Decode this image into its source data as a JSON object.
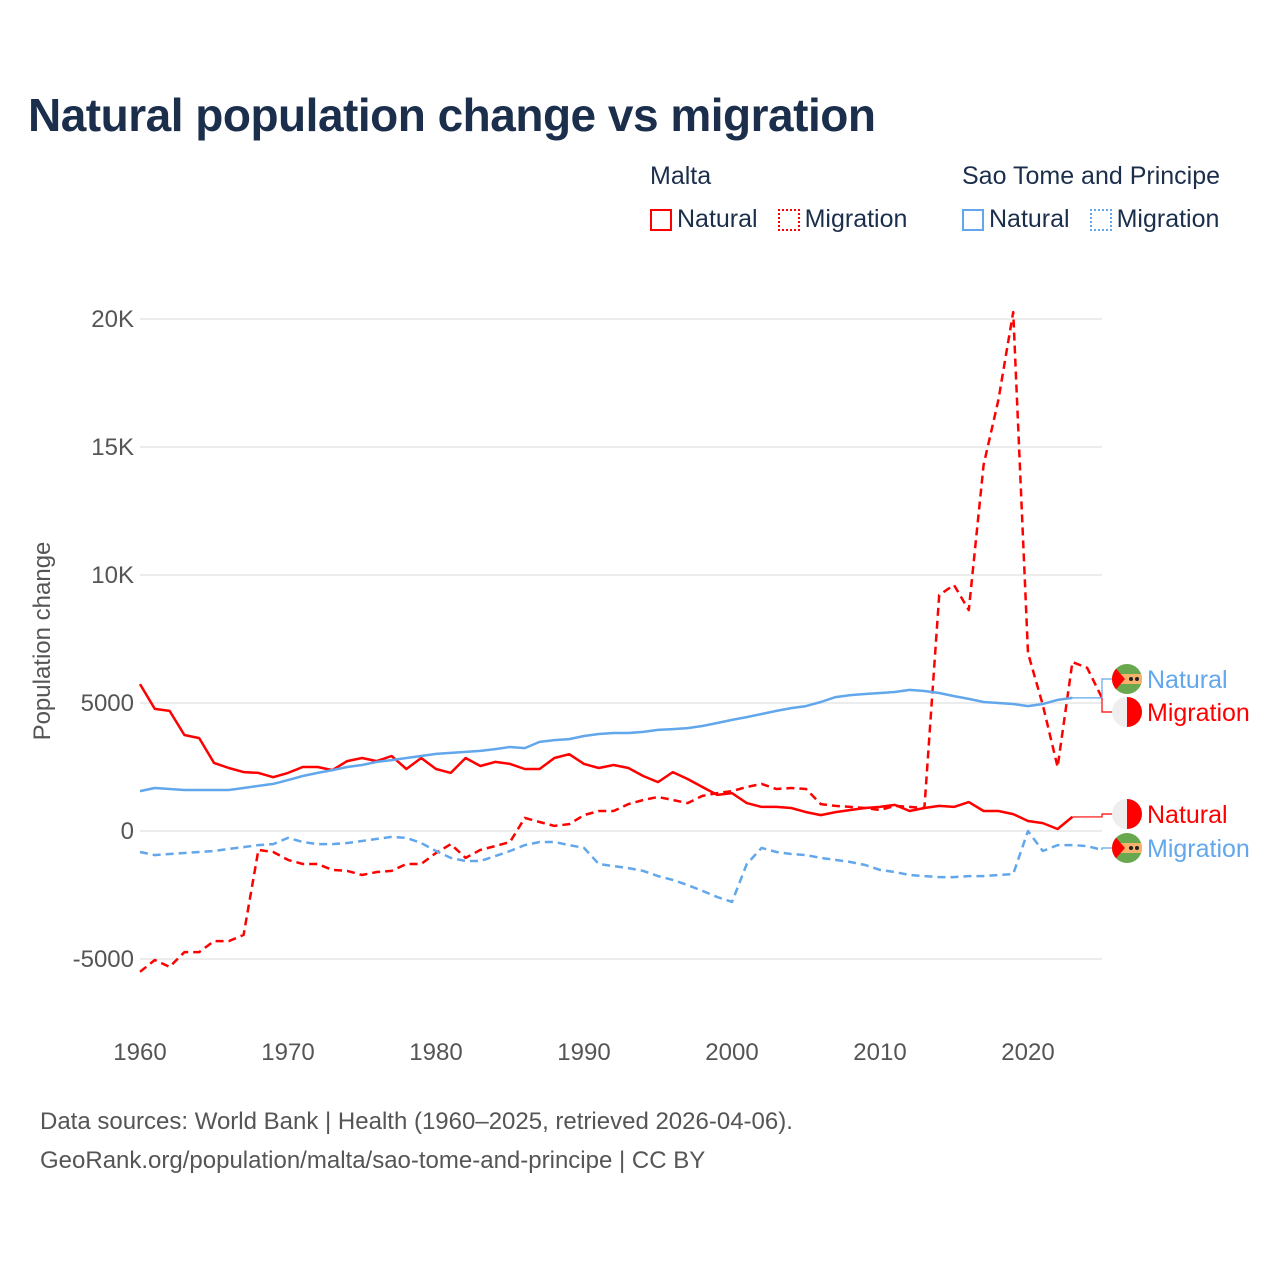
{
  "title": "Natural population change vs migration",
  "legend": {
    "groups": [
      {
        "name": "Malta",
        "color": "#ff0000",
        "items": [
          "Natural",
          "Migration"
        ]
      },
      {
        "name": "Sao Tome and Principe",
        "color": "#62a7eb",
        "items": [
          "Natural",
          "Migration"
        ]
      }
    ]
  },
  "footer": {
    "line1": "Data sources: World Bank | Health (1960–2025, retrieved 2026-04-06).",
    "line2": "GeoRank.org/population/malta/sao-tome-and-principe | CC BY"
  },
  "chart_data": {
    "type": "line",
    "title": "Natural population change vs migration",
    "xlabel": "",
    "ylabel": "Population change",
    "xlim": [
      1960,
      2025
    ],
    "ylim": [
      -6000,
      21000
    ],
    "x_ticks": [
      "1960",
      "1970",
      "1980",
      "1990",
      "2000",
      "2010",
      "2020"
    ],
    "y_ticks": [
      {
        "v": -5000,
        "label": "-5000"
      },
      {
        "v": 0,
        "label": "0"
      },
      {
        "v": 5000,
        "label": "5000"
      },
      {
        "v": 10000,
        "label": "10K"
      },
      {
        "v": 15000,
        "label": "15K"
      },
      {
        "v": 20000,
        "label": "20K"
      }
    ],
    "grid": true,
    "series": [
      {
        "name": "Malta Natural",
        "label": "Natural",
        "country": "Malta",
        "color": "#ff0000",
        "dash": false,
        "start": 1960,
        "values": [
          5740,
          4770,
          4690,
          3750,
          3630,
          2660,
          2460,
          2300,
          2270,
          2100,
          2270,
          2500,
          2500,
          2380,
          2730,
          2850,
          2730,
          2930,
          2420,
          2850,
          2420,
          2270,
          2850,
          2540,
          2700,
          2620,
          2420,
          2420,
          2850,
          3000,
          2620,
          2460,
          2580,
          2460,
          2150,
          1910,
          2300,
          2030,
          1720,
          1410,
          1480,
          1090,
          940,
          940,
          900,
          740,
          620,
          740,
          820,
          900,
          940,
          1020,
          780,
          900,
          980,
          940,
          1130,
          780,
          780,
          660,
          390,
          310,
          80,
          550
        ]
      },
      {
        "name": "Malta Migration",
        "label": "Migration",
        "country": "Malta",
        "color": "#ff0000",
        "dash": true,
        "start": 1960,
        "values": [
          -5500,
          -5040,
          -5310,
          -4730,
          -4730,
          -4300,
          -4300,
          -4060,
          -740,
          -820,
          -1130,
          -1290,
          -1290,
          -1520,
          -1560,
          -1720,
          -1600,
          -1560,
          -1290,
          -1290,
          -860,
          -510,
          -1050,
          -740,
          -590,
          -430,
          510,
          350,
          200,
          270,
          620,
          780,
          780,
          1050,
          1210,
          1330,
          1210,
          1090,
          1370,
          1480,
          1560,
          1720,
          1840,
          1640,
          1680,
          1640,
          1050,
          980,
          940,
          900,
          820,
          980,
          940,
          900,
          9220,
          9610,
          8630,
          14300,
          16840,
          20270,
          6950,
          4920,
          2500,
          6600,
          6370,
          5200
        ]
      },
      {
        "name": "Sao Tome and Principe Natural",
        "label": "Natural",
        "country": "Sao Tome and Principe",
        "color": "#62a7eb",
        "dash": false,
        "start": 1960,
        "values": [
          1560,
          1680,
          1640,
          1600,
          1600,
          1600,
          1600,
          1680,
          1760,
          1840,
          1990,
          2150,
          2270,
          2380,
          2500,
          2580,
          2700,
          2770,
          2850,
          2930,
          3010,
          3050,
          3090,
          3130,
          3200,
          3280,
          3240,
          3480,
          3550,
          3590,
          3710,
          3790,
          3830,
          3830,
          3870,
          3950,
          3980,
          4020,
          4100,
          4220,
          4340,
          4450,
          4570,
          4690,
          4800,
          4880,
          5040,
          5230,
          5310,
          5350,
          5390,
          5430,
          5510,
          5470,
          5390,
          5270,
          5160,
          5040,
          5000,
          4960,
          4880,
          4960,
          5120,
          5200
        ]
      },
      {
        "name": "Sao Tome and Principe Migration",
        "label": "Migration",
        "country": "Sao Tome and Principe",
        "color": "#62a7eb",
        "dash": true,
        "start": 1960,
        "values": [
          -820,
          -940,
          -900,
          -860,
          -820,
          -780,
          -700,
          -630,
          -550,
          -510,
          -270,
          -430,
          -510,
          -510,
          -470,
          -390,
          -310,
          -230,
          -270,
          -470,
          -780,
          -1050,
          -1170,
          -1170,
          -980,
          -780,
          -550,
          -430,
          -430,
          -550,
          -660,
          -1290,
          -1370,
          -1450,
          -1560,
          -1760,
          -1910,
          -2110,
          -2340,
          -2580,
          -2770,
          -1290,
          -660,
          -820,
          -900,
          -940,
          -1050,
          -1130,
          -1210,
          -1330,
          -1520,
          -1600,
          -1720,
          -1760,
          -1800,
          -1800,
          -1760,
          -1760,
          -1720,
          -1680,
          0,
          -780,
          -550,
          -550,
          -590,
          -740
        ]
      }
    ],
    "end_labels": [
      {
        "series": 2,
        "text": "Natural",
        "flag": "sao-tome-flag"
      },
      {
        "series": 1,
        "text": "Migration",
        "flag": "malta-flag"
      },
      {
        "series": 0,
        "text": "Natural",
        "flag": "malta-flag"
      },
      {
        "series": 3,
        "text": "Migration",
        "flag": "sao-tome-flag"
      }
    ]
  }
}
